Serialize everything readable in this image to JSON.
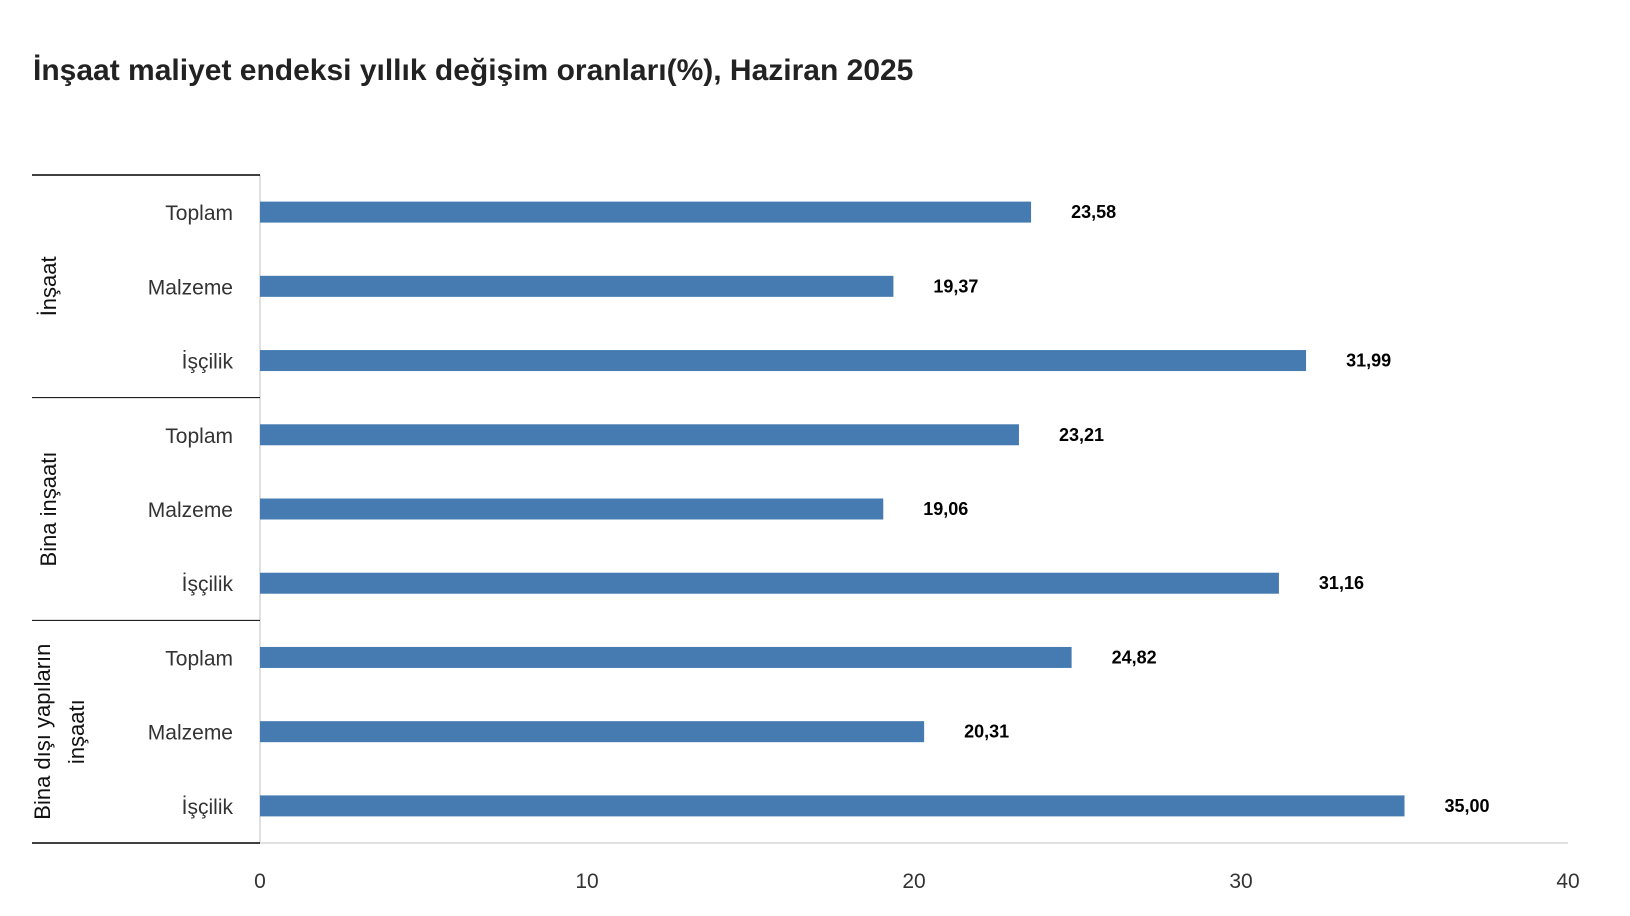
{
  "chart_data": {
    "type": "bar",
    "orientation": "horizontal",
    "title": "İnşaat maliyet endeksi yıllık değişim oranları(%), Haziran 2025",
    "groups": [
      {
        "name": "İnşaat",
        "categories": [
          "Toplam",
          "Malzeme",
          "İşçilik"
        ],
        "values": [
          23.58,
          19.37,
          31.99
        ],
        "labels": [
          "23,58",
          "19,37",
          "31,99"
        ]
      },
      {
        "name": "Bina inşaatı",
        "categories": [
          "Toplam",
          "Malzeme",
          "İşçilik"
        ],
        "values": [
          23.21,
          19.06,
          31.16
        ],
        "labels": [
          "23,21",
          "19,06",
          "31,16"
        ]
      },
      {
        "name_lines": [
          "Bina dışı yapıların",
          "inşaatı"
        ],
        "categories": [
          "Toplam",
          "Malzeme",
          "İşçilik"
        ],
        "values": [
          24.82,
          20.31,
          35.0
        ],
        "labels": [
          "24,82",
          "20,31",
          "35,00"
        ]
      }
    ],
    "xlim": [
      0,
      40
    ],
    "xticks": [
      "0",
      "10",
      "20",
      "30",
      "40"
    ],
    "grid": false,
    "legend": "none",
    "colors": {
      "bar": "#467BB1",
      "axis": "#e0e0e0",
      "separator": "#000000"
    }
  }
}
